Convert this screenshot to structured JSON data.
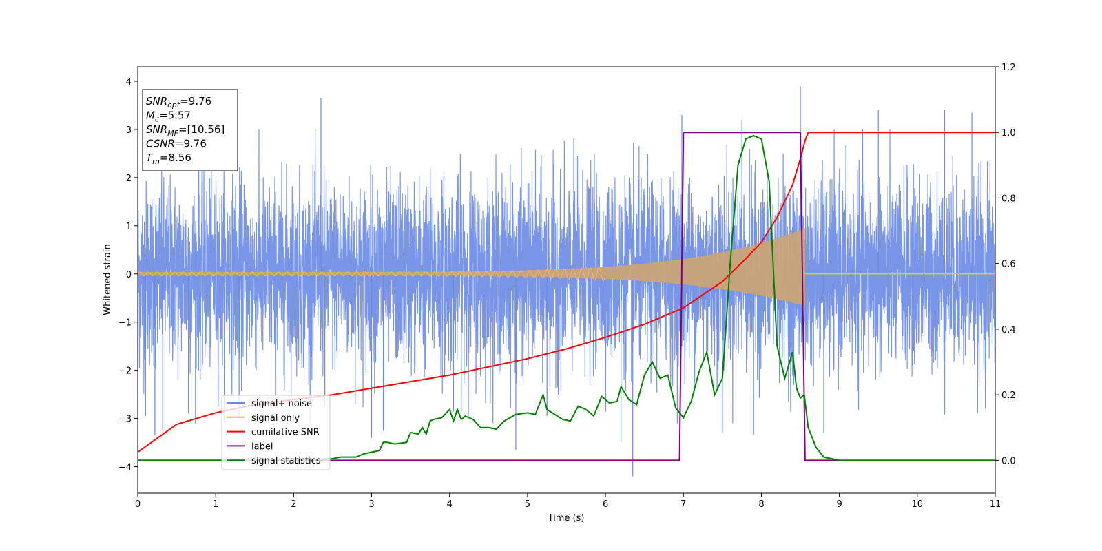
{
  "chart_data": {
    "type": "line",
    "xlabel": "Time (s)",
    "ylabel": "Whitened strain",
    "xlim": [
      0,
      11
    ],
    "ylim": [
      -4.55,
      4.3
    ],
    "y2lim": [
      -0.1,
      1.2
    ],
    "x_ticks": [
      "0",
      "1",
      "2",
      "3",
      "4",
      "5",
      "6",
      "7",
      "8",
      "9",
      "10",
      "11"
    ],
    "y_ticks": [
      "−4",
      "−3",
      "−2",
      "−1",
      "0",
      "1",
      "2",
      "3",
      "4"
    ],
    "y2_ticks": [
      "0.0",
      "0.2",
      "0.4",
      "0.6",
      "0.8",
      "1.0",
      "1.2"
    ],
    "grid": false,
    "legend_position": "lower-left",
    "annotation": {
      "lines": [
        {
          "base": "SNR",
          "sub": "opt",
          "value": "=9.76"
        },
        {
          "base": "M",
          "sub": "c",
          "value": "=5.57"
        },
        {
          "base": "SNR",
          "sub": "MF",
          "value": "=[10.56]"
        },
        {
          "base": "CSNR",
          "sub": "",
          "value": "=9.76"
        },
        {
          "base": "T",
          "sub": "m",
          "value": "=8.56"
        }
      ]
    },
    "series": [
      {
        "name": "signal+ noise",
        "color": "#6a8ae6",
        "axis": "left",
        "description_values": {
          "noise_sigma": 1.0,
          "t_start": 0,
          "t_end": 11
        },
        "peaks": [
          [
            0.1,
            -2.95
          ],
          [
            0.22,
            -3.35
          ],
          [
            0.32,
            -3.25
          ],
          [
            0.65,
            -2.9
          ],
          [
            1.3,
            -3.0
          ],
          [
            2.35,
            3.65
          ],
          [
            2.4,
            -2.75
          ],
          [
            3.0,
            -3.4
          ],
          [
            3.15,
            -3.25
          ],
          [
            4.05,
            -2.85
          ],
          [
            4.85,
            -3.65
          ],
          [
            5.25,
            -2.95
          ],
          [
            6.2,
            -3.5
          ],
          [
            6.35,
            -4.2
          ],
          [
            6.98,
            3.3
          ],
          [
            7.5,
            -3.3
          ],
          [
            7.75,
            3.2
          ],
          [
            7.9,
            -3.35
          ],
          [
            8.5,
            3.9
          ],
          [
            8.8,
            -3.3
          ],
          [
            9.5,
            3.4
          ],
          [
            10.35,
            3.4
          ],
          [
            10.7,
            3.35
          ]
        ]
      },
      {
        "name": "signal only",
        "color": "#f5b860",
        "axis": "left",
        "chirp": {
          "t_merge": 8.56,
          "amp_start": 0.04,
          "amp_end": 0.95
        }
      },
      {
        "name": "cumilative SNR",
        "color": "#ff0000",
        "axis": "right",
        "x": [
          0,
          0.5,
          1,
          1.5,
          2,
          2.5,
          3,
          3.5,
          4,
          4.5,
          5,
          5.5,
          6,
          6.5,
          7,
          7.5,
          7.8,
          8.0,
          8.2,
          8.4,
          8.5,
          8.56,
          8.6,
          11
        ],
        "y": [
          0.025,
          0.11,
          0.145,
          0.17,
          0.185,
          0.2,
          0.22,
          0.24,
          0.26,
          0.285,
          0.31,
          0.34,
          0.375,
          0.415,
          0.465,
          0.545,
          0.615,
          0.665,
          0.74,
          0.84,
          0.92,
          0.975,
          1.0,
          1.0
        ]
      },
      {
        "name": "label",
        "color": "#800080",
        "axis": "right",
        "x": [
          0,
          6.95,
          7.0,
          8.5,
          8.56,
          11
        ],
        "y": [
          0,
          0,
          1.0,
          1.0,
          0,
          0
        ]
      },
      {
        "name": "signal statistics",
        "color": "#008000",
        "axis": "right",
        "x": [
          0,
          2.0,
          2.5,
          2.6,
          2.8,
          2.9,
          3.0,
          3.1,
          3.15,
          3.2,
          3.3,
          3.45,
          3.5,
          3.6,
          3.65,
          3.7,
          3.75,
          3.8,
          3.9,
          4.0,
          4.05,
          4.1,
          4.15,
          4.2,
          4.3,
          4.4,
          4.45,
          4.5,
          4.6,
          4.7,
          4.85,
          5.0,
          5.1,
          5.2,
          5.25,
          5.35,
          5.45,
          5.55,
          5.65,
          5.75,
          5.85,
          5.95,
          6.05,
          6.15,
          6.2,
          6.3,
          6.4,
          6.5,
          6.6,
          6.7,
          6.8,
          6.9,
          7.0,
          7.1,
          7.2,
          7.3,
          7.4,
          7.5,
          7.6,
          7.65,
          7.7,
          7.8,
          7.9,
          8.0,
          8.1,
          8.2,
          8.3,
          8.4,
          8.45,
          8.5,
          8.55,
          8.6,
          8.7,
          8.8,
          8.9,
          9.0,
          11
        ],
        "y": [
          0,
          0,
          0.005,
          0.01,
          0.01,
          0.02,
          0.025,
          0.03,
          0.055,
          0.055,
          0.05,
          0.055,
          0.085,
          0.08,
          0.1,
          0.08,
          0.12,
          0.125,
          0.13,
          0.155,
          0.12,
          0.155,
          0.125,
          0.135,
          0.125,
          0.1,
          0.1,
          0.1,
          0.095,
          0.12,
          0.14,
          0.145,
          0.14,
          0.2,
          0.155,
          0.14,
          0.125,
          0.12,
          0.165,
          0.155,
          0.135,
          0.195,
          0.175,
          0.18,
          0.225,
          0.185,
          0.17,
          0.26,
          0.3,
          0.25,
          0.26,
          0.16,
          0.13,
          0.18,
          0.27,
          0.33,
          0.2,
          0.25,
          0.6,
          0.75,
          0.9,
          0.98,
          0.99,
          0.98,
          0.85,
          0.35,
          0.25,
          0.33,
          0.22,
          0.19,
          0.2,
          0.1,
          0.04,
          0.01,
          0.005,
          0.0,
          0.0
        ]
      }
    ]
  }
}
